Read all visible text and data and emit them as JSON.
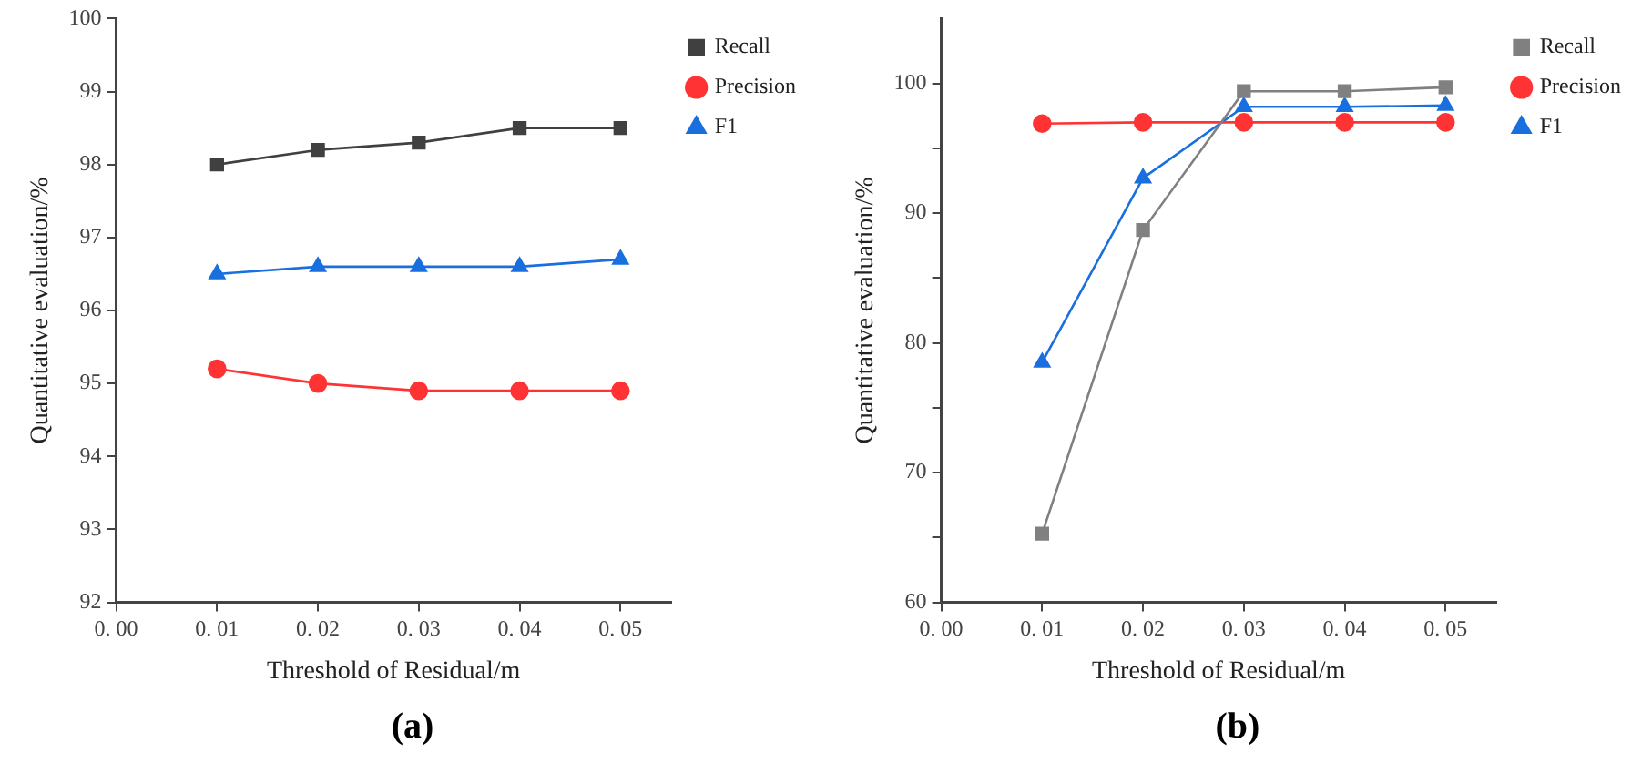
{
  "chart_data": [
    {
      "type": "line",
      "xlabel": "Threshold of Residual/m",
      "ylabel": "Quantitative evaluation/%",
      "categories": [
        "0. 00",
        "0. 01",
        "0. 02",
        "0. 03",
        "0. 04",
        "0. 05"
      ],
      "ylim": [
        92,
        100
      ],
      "yticks": [
        92,
        93,
        94,
        95,
        96,
        97,
        98,
        99,
        100
      ],
      "legend": "top right",
      "annotations": [
        "(a)"
      ],
      "series": [
        {
          "name": "Recall",
          "color": "#404040",
          "marker": "square",
          "values": [
            null,
            98.0,
            98.2,
            98.3,
            98.5,
            98.5
          ]
        },
        {
          "name": "Precision",
          "color": "#ff3333",
          "marker": "circle",
          "values": [
            null,
            95.2,
            95.0,
            94.9,
            94.9,
            94.9
          ]
        },
        {
          "name": "F1",
          "color": "#1a6fdf",
          "marker": "triangle",
          "values": [
            null,
            96.5,
            96.6,
            96.6,
            96.6,
            96.7
          ]
        }
      ]
    },
    {
      "type": "line",
      "xlabel": "Threshold of Residual/m",
      "ylabel": "Quantitative evaluation/%",
      "categories": [
        "0. 00",
        "0. 01",
        "0. 02",
        "0. 03",
        "0. 04",
        "0. 05"
      ],
      "ylim": [
        60,
        105
      ],
      "yticks": [
        60,
        {
          "value": 65,
          "label": null
        },
        70,
        {
          "value": 75,
          "label": null
        },
        80,
        {
          "value": 85,
          "label": null
        },
        90,
        {
          "value": 95,
          "label": null
        },
        100
      ],
      "legend": "top right",
      "annotations": [
        "(b)"
      ],
      "series": [
        {
          "name": "Recall",
          "color": "#808080",
          "marker": "square",
          "values": [
            null,
            65.3,
            88.7,
            99.4,
            99.4,
            99.7
          ]
        },
        {
          "name": "Precision",
          "color": "#ff3333",
          "marker": "circle",
          "values": [
            null,
            96.9,
            97.0,
            97.0,
            97.0,
            97.0
          ]
        },
        {
          "name": "F1",
          "color": "#1a6fdf",
          "marker": "triangle",
          "values": [
            null,
            78.5,
            92.7,
            98.2,
            98.2,
            98.3
          ]
        }
      ]
    }
  ]
}
